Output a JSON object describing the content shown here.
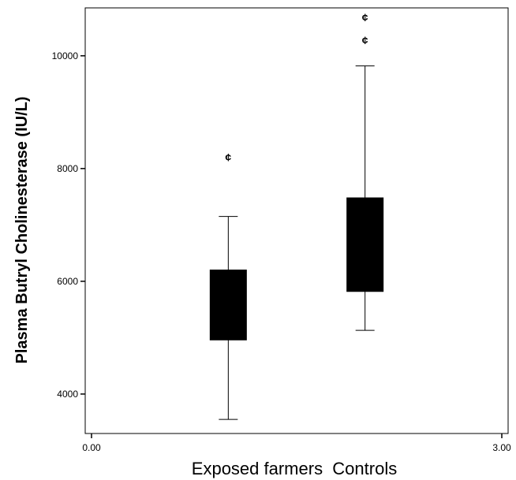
{
  "chart_data": {
    "type": "boxplot",
    "title": "",
    "xlabel": "Exposed farmers  Controls",
    "ylabel": "Plasma Butryl Cholinesterase (IU/L)",
    "xlim": [
      0,
      3
    ],
    "ylim": [
      3300,
      10850
    ],
    "x_ticks": [
      {
        "value": 0,
        "label": "0.00"
      },
      {
        "value": 3,
        "label": "3.00"
      }
    ],
    "y_ticks": [
      {
        "value": 4000,
        "label": "4000"
      },
      {
        "value": 6000,
        "label": "6000"
      },
      {
        "value": 8000,
        "label": "8000"
      },
      {
        "value": 10000,
        "label": "10000"
      }
    ],
    "grid": false,
    "box_color": "#000000",
    "boxes": [
      {
        "x": 1,
        "whisker_low": 3550,
        "q1": 4960,
        "q3": 6200,
        "whisker_high": 7150,
        "outliers": [
          8200
        ],
        "outlier_symbol": "¢"
      },
      {
        "x": 2,
        "whisker_low": 5130,
        "q1": 5820,
        "q3": 7480,
        "whisker_high": 9820,
        "outliers": [
          10280,
          10680
        ],
        "outlier_symbol": "¢"
      }
    ]
  }
}
